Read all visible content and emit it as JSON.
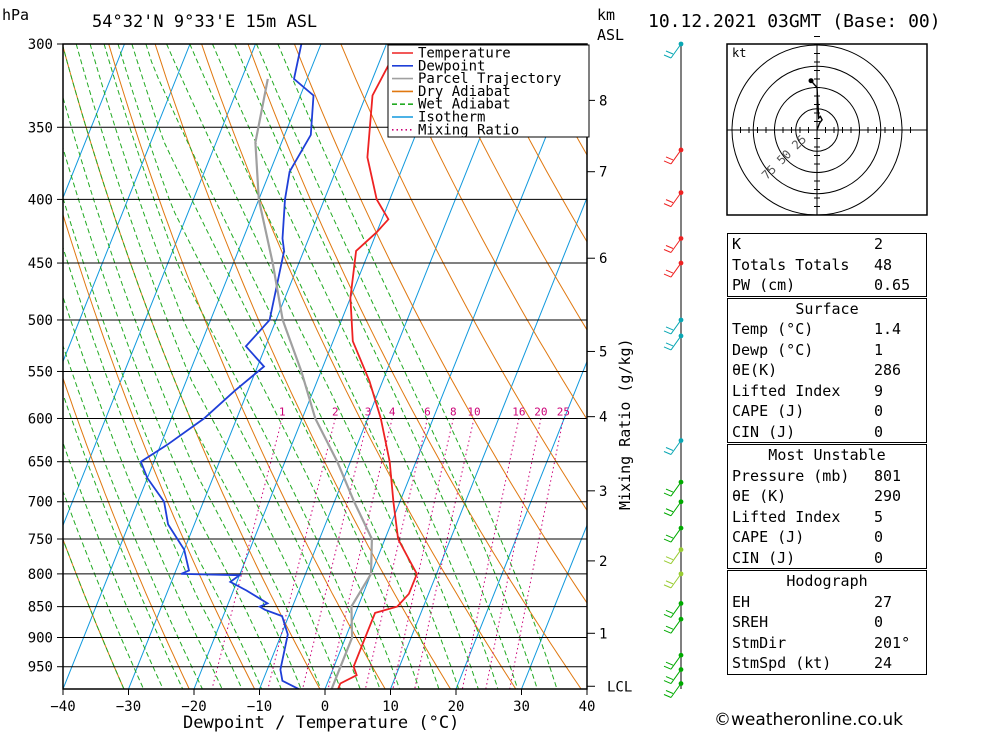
{
  "header": {
    "location": "54°32'N  9°33'E  15m  ASL",
    "datetime": "10.12.2021  03GMT  (Base: 00)",
    "pressure_unit": "hPa",
    "km_unit": "km",
    "asl_unit": "ASL"
  },
  "chart_data": {
    "type": "line",
    "xlabel": "Dewpoint / Temperature (°C)",
    "ylabel_right": "Mixing Ratio (g/kg)",
    "xlim": [
      -40,
      40
    ],
    "plim": [
      300,
      990
    ],
    "x_ticks": [
      "−40",
      "−30",
      "−20",
      "−10",
      "0",
      "10",
      "20",
      "30",
      "40"
    ],
    "p_ticks": [
      300,
      350,
      400,
      450,
      500,
      550,
      600,
      650,
      700,
      750,
      800,
      850,
      900,
      950
    ],
    "km_ticks": [
      {
        "label": "8",
        "p": 333
      },
      {
        "label": "7",
        "p": 380
      },
      {
        "label": "6",
        "p": 446
      },
      {
        "label": "5",
        "p": 530
      },
      {
        "label": "4",
        "p": 598
      },
      {
        "label": "3",
        "p": 686
      },
      {
        "label": "2",
        "p": 781
      },
      {
        "label": "1",
        "p": 893
      }
    ],
    "lcl": {
      "label": "LCL",
      "p": 985
    },
    "mixing_ratio_labels": [
      "1",
      "2",
      "3",
      "4",
      "6",
      "8",
      "10",
      "16",
      "20",
      "25"
    ],
    "legend": [
      "Temperature",
      "Dewpoint",
      "Parcel Trajectory",
      "Dry Adiabat",
      "Wet Adiabat",
      "Isotherm",
      "Mixing Ratio"
    ],
    "series": [
      {
        "name": "Temperature",
        "points": [
          [
            300,
            -28
          ],
          [
            330,
            -29
          ],
          [
            370,
            -26
          ],
          [
            400,
            -22
          ],
          [
            415,
            -19
          ],
          [
            425,
            -20
          ],
          [
            440,
            -22
          ],
          [
            480,
            -20
          ],
          [
            520,
            -17
          ],
          [
            560,
            -12
          ],
          [
            600,
            -8
          ],
          [
            650,
            -4
          ],
          [
            700,
            -1
          ],
          [
            750,
            2
          ],
          [
            790,
            6
          ],
          [
            800,
            7
          ],
          [
            830,
            7
          ],
          [
            850,
            6
          ],
          [
            860,
            3
          ],
          [
            900,
            3
          ],
          [
            950,
            3
          ],
          [
            965,
            4
          ],
          [
            980,
            2
          ],
          [
            990,
            2
          ]
        ]
      },
      {
        "name": "Dewpoint",
        "points": [
          [
            300,
            -43
          ],
          [
            320,
            -42
          ],
          [
            330,
            -38
          ],
          [
            355,
            -36
          ],
          [
            380,
            -37
          ],
          [
            400,
            -36
          ],
          [
            430,
            -34
          ],
          [
            440,
            -33
          ],
          [
            500,
            -31
          ],
          [
            525,
            -33
          ],
          [
            545,
            -29
          ],
          [
            570,
            -32
          ],
          [
            600,
            -35
          ],
          [
            630,
            -39
          ],
          [
            650,
            -42
          ],
          [
            670,
            -40
          ],
          [
            700,
            -36
          ],
          [
            730,
            -34
          ],
          [
            765,
            -30
          ],
          [
            780,
            -29
          ],
          [
            795,
            -28
          ],
          [
            800,
            -29
          ],
          [
            802,
            -20
          ],
          [
            812,
            -21
          ],
          [
            825,
            -18
          ],
          [
            845,
            -14
          ],
          [
            850,
            -15
          ],
          [
            855,
            -14
          ],
          [
            865,
            -11
          ],
          [
            895,
            -9
          ],
          [
            955,
            -8
          ],
          [
            975,
            -7
          ],
          [
            985,
            -5
          ],
          [
            990,
            -4
          ]
        ]
      },
      {
        "name": "Parcel Trajectory",
        "points": [
          [
            320,
            -46
          ],
          [
            360,
            -44
          ],
          [
            400,
            -40
          ],
          [
            450,
            -34
          ],
          [
            500,
            -29
          ],
          [
            550,
            -23
          ],
          [
            600,
            -18
          ],
          [
            650,
            -12
          ],
          [
            700,
            -7
          ],
          [
            750,
            -2
          ],
          [
            800,
            0
          ],
          [
            850,
            -1
          ],
          [
            900,
            1
          ],
          [
            950,
            1
          ],
          [
            990,
            1
          ]
        ]
      }
    ],
    "wind_barbs": [
      {
        "p": 300,
        "color": "#0aa7b4"
      },
      {
        "p": 365,
        "color": "#ee2222"
      },
      {
        "p": 395,
        "color": "#ee2222"
      },
      {
        "p": 430,
        "color": "#ee2222"
      },
      {
        "p": 450,
        "color": "#ee2222"
      },
      {
        "p": 500,
        "color": "#0aa7b4"
      },
      {
        "p": 515,
        "color": "#0aa7b4"
      },
      {
        "p": 625,
        "color": "#0aa7b4"
      },
      {
        "p": 675,
        "color": "#00aa00"
      },
      {
        "p": 700,
        "color": "#00aa00"
      },
      {
        "p": 735,
        "color": "#00aa00"
      },
      {
        "p": 765,
        "color": "#99cc33"
      },
      {
        "p": 800,
        "color": "#99cc33"
      },
      {
        "p": 845,
        "color": "#00aa00"
      },
      {
        "p": 870,
        "color": "#00aa00"
      },
      {
        "p": 930,
        "color": "#00aa00"
      },
      {
        "p": 955,
        "color": "#00aa00"
      },
      {
        "p": 980,
        "color": "#00aa00"
      }
    ],
    "hodograph": {
      "unit": "kt",
      "ring_labels": [
        "25",
        "50",
        "75"
      ],
      "path": [
        [
          0,
          0
        ],
        [
          3,
          8
        ],
        [
          6,
          12
        ],
        [
          4,
          16
        ],
        [
          2,
          14
        ],
        [
          0,
          50
        ],
        [
          -7,
          58
        ]
      ]
    },
    "colors": {
      "temperature": "#ee2222",
      "dewpoint": "#1f3fd8",
      "parcel": "#a0a0a0",
      "dry_adiabat": "#e07810",
      "wet_adiabat": "#22aa22",
      "isotherm": "#1199dd",
      "mixing_ratio": "#cc0077"
    }
  },
  "indices": {
    "general": [
      {
        "label": "K",
        "value": "2"
      },
      {
        "label": "Totals Totals",
        "value": "48"
      },
      {
        "label": "PW (cm)",
        "value": "0.65"
      }
    ],
    "surface": {
      "title": "Surface",
      "rows": [
        {
          "label": "Temp (°C)",
          "value": "1.4"
        },
        {
          "label": "Dewp (°C)",
          "value": "1"
        },
        {
          "label": "θE(K)",
          "value": "286"
        },
        {
          "label": "Lifted Index",
          "value": "9"
        },
        {
          "label": "CAPE (J)",
          "value": "0"
        },
        {
          "label": "CIN (J)",
          "value": "0"
        }
      ]
    },
    "most_unstable": {
      "title": "Most Unstable",
      "rows": [
        {
          "label": "Pressure (mb)",
          "value": "801"
        },
        {
          "label": "θE (K)",
          "value": "290"
        },
        {
          "label": "Lifted Index",
          "value": "5"
        },
        {
          "label": "CAPE (J)",
          "value": "0"
        },
        {
          "label": "CIN (J)",
          "value": "0"
        }
      ]
    },
    "hodograph": {
      "title": "Hodograph",
      "rows": [
        {
          "label": "EH",
          "value": "27"
        },
        {
          "label": "SREH",
          "value": "0"
        },
        {
          "label": "StmDir",
          "value": "201°"
        },
        {
          "label": "StmSpd (kt)",
          "value": "24"
        }
      ]
    }
  },
  "footer": "©weatheronline.co.uk"
}
